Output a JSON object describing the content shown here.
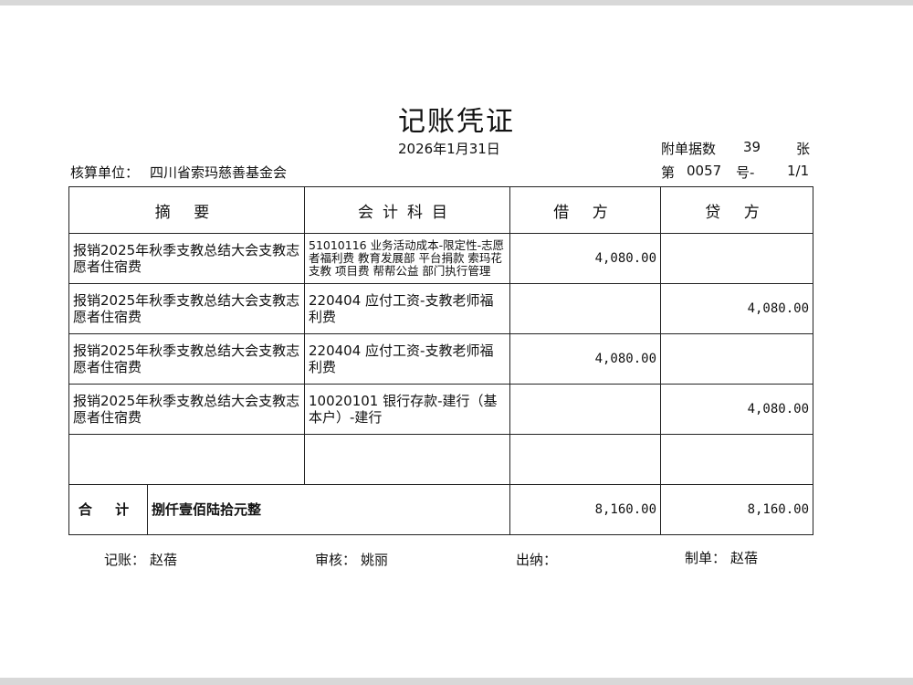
{
  "title": "记账凭证",
  "date": "2026年1月31日",
  "attachments_label": "附单据数",
  "attachments_count": "39",
  "attachments_unit": "张",
  "unit_label": "核算单位：",
  "unit_name": "四川省索玛慈善基金会",
  "voucher_no_prefix": "第",
  "voucher_no": "0057",
  "voucher_no_suffix": "号-",
  "page": "1/1",
  "columns": [
    "摘 要",
    "会计科目",
    "借 方",
    "贷 方"
  ],
  "rows": [
    {
      "summary": "报销2025年秋季支教总结大会支教志愿者住宿费",
      "account": "51010116 业务活动成本-限定性-志愿者福利费 教育发展部 平台捐款 索玛花支教 项目费 帮帮公益 部门执行管理",
      "debit": "4,080.00",
      "credit": ""
    },
    {
      "summary": "报销2025年秋季支教总结大会支教志愿者住宿费",
      "account": "220404 应付工资-支教老师福利费",
      "debit": "",
      "credit": "4,080.00"
    },
    {
      "summary": "报销2025年秋季支教总结大会支教志愿者住宿费",
      "account": "220404 应付工资-支教老师福利费",
      "debit": "4,080.00",
      "credit": ""
    },
    {
      "summary": "报销2025年秋季支教总结大会支教志愿者住宿费",
      "account": "10020101 银行存款-建行（基本户）-建行",
      "debit": "",
      "credit": "4,080.00"
    },
    {
      "summary": "",
      "account": "",
      "debit": "",
      "credit": ""
    }
  ],
  "total": {
    "label": "合 计",
    "amount_words": "捌仟壹佰陆拾元整",
    "debit": "8,160.00",
    "credit": "8,160.00"
  },
  "footer": {
    "bookkeeper_label": "记账：",
    "bookkeeper": "赵蓓",
    "reviewer_label": "审核：",
    "reviewer": "姚丽",
    "cashier_label": "出纳：",
    "cashier": "",
    "preparer_label": "制单：",
    "preparer": "赵蓓"
  }
}
